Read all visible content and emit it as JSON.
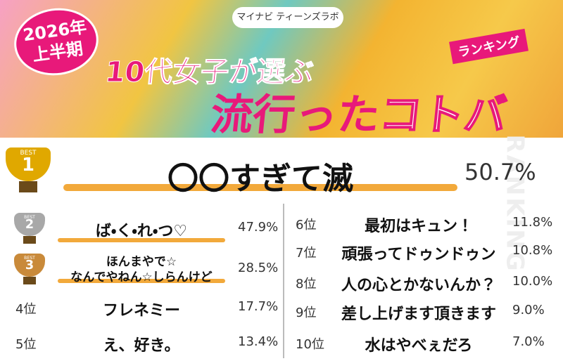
{
  "header": {
    "brand": "マイナビ ティーンズラボ",
    "period_year": "2026年",
    "period_half": "上半期",
    "title_line1": "10代女子が選ぶ",
    "title_line2_a": "流行った",
    "title_line2_b": "コトバ",
    "badge": "ランキング"
  },
  "side_label": "RANKING",
  "trophy_label": "BEST",
  "top": {
    "badge": "1",
    "word": "〇〇すぎて滅",
    "percent": "50.7%"
  },
  "left": [
    {
      "badge": "2",
      "word": [
        "ば・く・れ・つ♡"
      ],
      "percent": "47.9%"
    },
    {
      "badge": "3",
      "word": [
        "ほんまやで☆",
        "なんでやねん☆しらんけど"
      ],
      "percent": "28.5%"
    },
    {
      "rank": "4位",
      "word": [
        "フレネミー"
      ],
      "percent": "17.7%"
    },
    {
      "rank": "5位",
      "word": [
        "え、好き。"
      ],
      "percent": "13.4%"
    }
  ],
  "right": [
    {
      "rank": "6位",
      "word": [
        "最初はキュン！"
      ],
      "percent": "11.8%"
    },
    {
      "rank": "7位",
      "word": [
        "頑張ってドゥンドゥン"
      ],
      "percent": "10.8%"
    },
    {
      "rank": "8位",
      "word": [
        "人の心とかないんか？"
      ],
      "percent": "10.0%"
    },
    {
      "rank": "9位",
      "word": [
        "差し上げます頂きます"
      ],
      "percent": "9.0%"
    },
    {
      "rank": "10位",
      "word": [
        "水はやべぇだろ"
      ],
      "percent": "7.0%"
    }
  ]
}
